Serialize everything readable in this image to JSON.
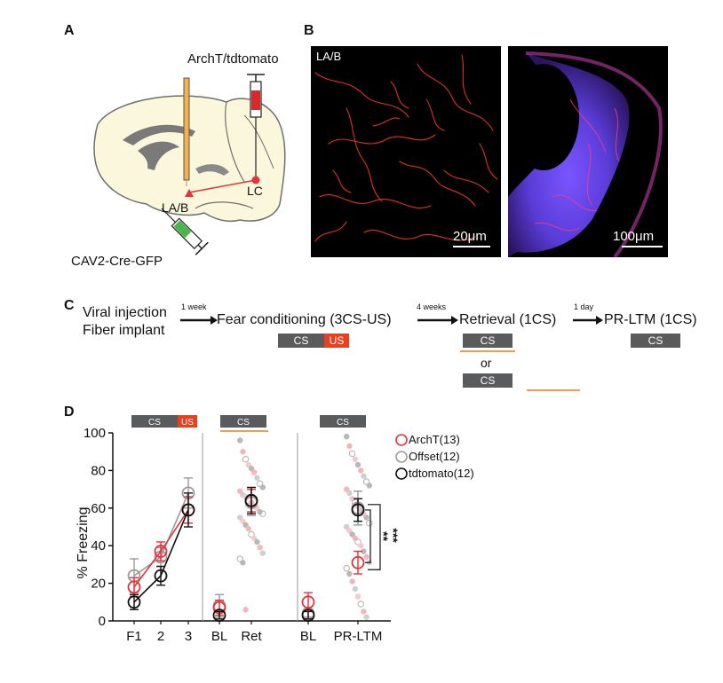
{
  "panels": {
    "a": "A",
    "b": "B",
    "c": "C",
    "d": "D"
  },
  "panel_a": {
    "virus_top": "ArchT/tdtomato",
    "region_la": "LA/B",
    "region_lc": "LC",
    "virus_bottom": "CAV2-Cre-GFP"
  },
  "panel_b": {
    "image_label": "LA/B",
    "scale_left": "20μm",
    "scale_right": "100μm"
  },
  "panel_c": {
    "step1_line1": "Viral injection",
    "step1_line2": "Fiber implant",
    "arrow1": "1 week",
    "step2": "Fear conditioning (3CS-US)",
    "arrow2": "4 weeks",
    "step3": "Retrieval (1CS)",
    "arrow3": "1 day",
    "step4": "PR-LTM (1CS)",
    "cs": "CS",
    "us": "US",
    "or": "or"
  },
  "colors": {
    "archt": "#e2343a",
    "offset": "#9a9a9a",
    "tdtomato": "#111111",
    "orange": "#f39c4a",
    "cs_box": "#5a5b5d",
    "us_box": "#e8401c"
  },
  "chart_data": {
    "type": "scatter",
    "ylabel": "% Freezing",
    "ylim": [
      0,
      100
    ],
    "yticks": [
      0,
      20,
      40,
      60,
      80,
      100
    ],
    "categories": [
      "F1",
      "2",
      "3",
      "BL",
      "Ret",
      "BL",
      "PR-LTM"
    ],
    "top_labels": {
      "cs": "CS",
      "us": "US"
    },
    "series": [
      {
        "name": "ArchT(13)",
        "F1": 18,
        "2": 37,
        "3": 59,
        "BL_ret": 7,
        "Ret": 64,
        "BL_pr": 10,
        "PR-LTM": 31,
        "err": {
          "F1": 5,
          "2": 5,
          "3": 7,
          "BL_ret": 4,
          "Ret": 6,
          "BL_pr": 5,
          "PR-LTM": 6
        }
      },
      {
        "name": "Offset(12)",
        "F1": 24,
        "2": 34,
        "3": 68,
        "BL_ret": 8,
        "Ret": 63,
        "BL_pr": 4,
        "PR-LTM": 60,
        "err": {
          "F1": 9,
          "2": 5,
          "3": 8,
          "BL_ret": 6,
          "Ret": 7,
          "BL_pr": 2,
          "PR-LTM": 9
        }
      },
      {
        "name": "tdtomato(12)",
        "F1": 10,
        "2": 24,
        "3": 59,
        "BL_ret": 3,
        "Ret": 64,
        "BL_pr": 3,
        "PR-LTM": 59,
        "err": {
          "F1": 4,
          "2": 5,
          "3": 9,
          "BL_ret": 2,
          "Ret": 7,
          "BL_pr": 2,
          "PR-LTM": 6
        }
      }
    ],
    "scatter_points": {
      "Ret": [
        96,
        90,
        86,
        83,
        81,
        79,
        76,
        73,
        71,
        69,
        67,
        66,
        64,
        63,
        61,
        60,
        58,
        57,
        55,
        53,
        51,
        49,
        46,
        44,
        42,
        39,
        36,
        33,
        31,
        6
      ],
      "PR-LTM": [
        98,
        93,
        89,
        86,
        83,
        80,
        77,
        74,
        72,
        70,
        68,
        65,
        63,
        61,
        59,
        57,
        55,
        52,
        50,
        48,
        46,
        44,
        42,
        40,
        37,
        34,
        31,
        28,
        25,
        21,
        17,
        13,
        9,
        5,
        2
      ]
    },
    "significance": {
      "archt_vs_tdtomato": "**",
      "archt_vs_offset": "***"
    }
  }
}
